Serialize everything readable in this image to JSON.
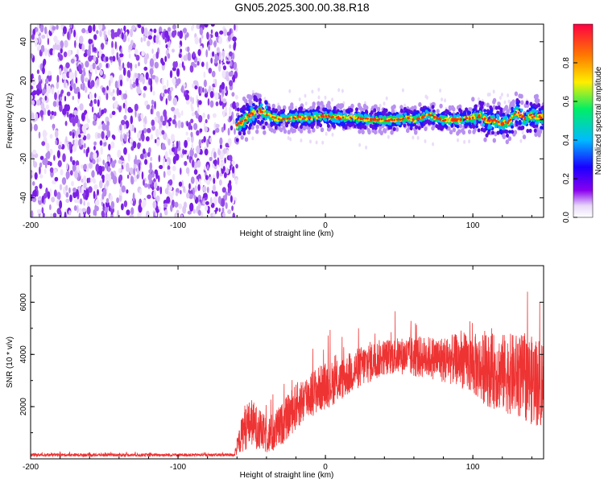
{
  "title": "GN05.2025.300.00.38.R18",
  "chart_data": [
    {
      "type": "heatmap",
      "xlabel": "Height of straight line (km)",
      "ylabel": "Frequency (Hz)",
      "xlim": [
        -200,
        148
      ],
      "ylim": [
        -50,
        49
      ],
      "xticks": [
        -200,
        -100,
        0,
        100
      ],
      "xtick_labels": [
        "-200",
        "-100",
        "0",
        "100"
      ],
      "yticks": [
        -40,
        -20,
        0,
        20,
        40
      ],
      "ytick_labels": [
        "-40",
        "-20",
        "0",
        "20",
        "40"
      ],
      "noise_region_x": [
        -200,
        -60
      ],
      "signal_onset_x": -60,
      "signal_ridge": {
        "x": [
          -60,
          -55,
          -50,
          -45,
          -40,
          -35,
          -30,
          -20,
          -10,
          0,
          10,
          20,
          30,
          40,
          50,
          55,
          60,
          65,
          70,
          75,
          80,
          90,
          100,
          105,
          110,
          115,
          120,
          125,
          130,
          135,
          140,
          148
        ],
        "frequency": [
          -3,
          0,
          3,
          5,
          3,
          1,
          0,
          1,
          1,
          2,
          1,
          1,
          0,
          0,
          0,
          1,
          0,
          1,
          3,
          1,
          0,
          0,
          1,
          2,
          -1,
          0,
          -2,
          -1,
          4,
          1,
          2,
          1
        ]
      },
      "colorbar": {
        "label": "Normalized spectral amplitude",
        "range": [
          0,
          1
        ],
        "ticks": [
          0.0,
          0.2,
          0.4,
          0.6,
          0.8
        ],
        "tick_labels": [
          "0.0",
          "0.2",
          "0.4",
          "0.6",
          "0.8"
        ],
        "colormap": [
          "#ffffff",
          "#e8d8f8",
          "#8800ee",
          "#1a00ff",
          "#00bbff",
          "#00ee66",
          "#ffee00",
          "#ff7700",
          "#ff0044"
        ]
      }
    },
    {
      "type": "line",
      "xlabel": "Height of straight line (km)",
      "ylabel": "SNR (10 * v/v)",
      "xlim": [
        -200,
        148
      ],
      "ylim": [
        0,
        7400
      ],
      "xticks": [
        -200,
        -100,
        0,
        100
      ],
      "xtick_labels": [
        "-200",
        "-100",
        "0",
        "100"
      ],
      "yticks": [
        2000,
        4000,
        6000
      ],
      "ytick_labels": [
        "2000",
        "4000",
        "6000"
      ],
      "series": [
        {
          "name": "SNR",
          "color": "#ee3333",
          "envelope_x": [
            -200,
            -150,
            -100,
            -62,
            -55,
            -50,
            -45,
            -40,
            -35,
            -30,
            -20,
            -10,
            0,
            10,
            20,
            30,
            40,
            50,
            60,
            70,
            80,
            90,
            100,
            110,
            120,
            130,
            140,
            148
          ],
          "envelope_mean": [
            150,
            150,
            150,
            150,
            1200,
            1400,
            1100,
            900,
            1000,
            1300,
            2000,
            2500,
            2800,
            3000,
            3400,
            3700,
            3900,
            3950,
            3900,
            3900,
            3800,
            3800,
            3600,
            3400,
            3300,
            3200,
            3000,
            2900
          ],
          "envelope_spread": [
            60,
            60,
            60,
            60,
            900,
            900,
            800,
            700,
            800,
            800,
            900,
            900,
            900,
            800,
            800,
            800,
            700,
            700,
            800,
            800,
            900,
            1000,
            1200,
            1400,
            1500,
            1600,
            1700,
            1800
          ]
        }
      ]
    }
  ]
}
